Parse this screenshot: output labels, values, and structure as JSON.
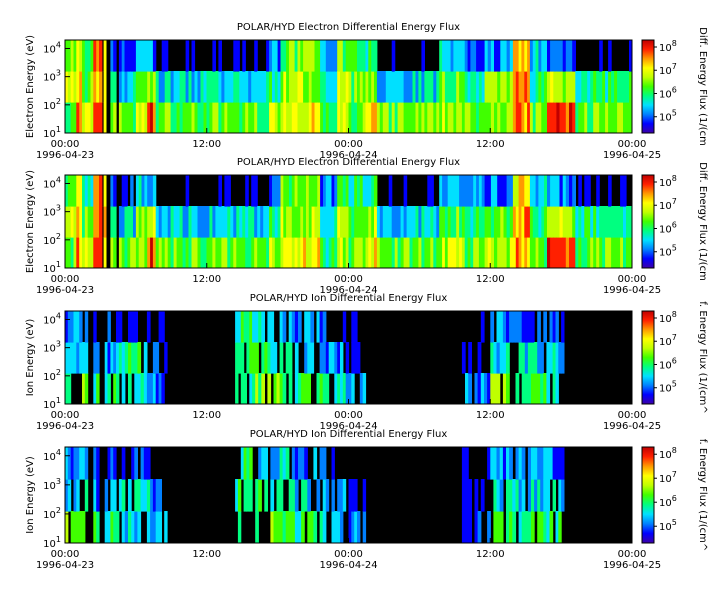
{
  "colors": {
    "background": "#000000",
    "colormap": [
      "#3d00a8",
      "#0000ff",
      "#0080ff",
      "#00e0ff",
      "#00ff80",
      "#40ff00",
      "#c0ff00",
      "#ffff00",
      "#ff9900",
      "#ff2000",
      "#c00000"
    ]
  },
  "chart_data": [
    {
      "type": "heatmap",
      "title": "POLAR/HYD  Electron Differential Energy Flux",
      "ylabel": "Electron Energy (eV)",
      "colorbar_label": "Diff. Energy Flux (1/(cm",
      "y_scale": "log",
      "ylim": [
        10,
        20000
      ],
      "y_ticks": [
        {
          "base": "10",
          "exp": "1"
        },
        {
          "base": "10",
          "exp": "2"
        },
        {
          "base": "10",
          "exp": "3"
        },
        {
          "base": "10",
          "exp": "4"
        }
      ],
      "colorbar_scale": "log",
      "colorbar_range": [
        20000,
        200000000
      ],
      "colorbar_ticks": [
        {
          "base": "10",
          "exp": "5"
        },
        {
          "base": "10",
          "exp": "6"
        },
        {
          "base": "10",
          "exp": "7"
        },
        {
          "base": "10",
          "exp": "8"
        }
      ],
      "x_ticks": [
        {
          "time": "00:00",
          "date": "1996-04-23"
        },
        {
          "time": "12:00",
          "date": ""
        },
        {
          "time": "00:00",
          "date": "1996-04-24"
        },
        {
          "time": "12:00",
          "date": ""
        },
        {
          "time": "00:00",
          "date": "1996-04-25"
        }
      ]
    },
    {
      "type": "heatmap",
      "title": "POLAR/HYD  Electron Differential Energy Flux",
      "ylabel": "Electron Energy (eV)",
      "colorbar_label": "Diff. Energy Flux (1/(cm",
      "y_scale": "log",
      "ylim": [
        10,
        20000
      ],
      "y_ticks": [
        {
          "base": "10",
          "exp": "1"
        },
        {
          "base": "10",
          "exp": "2"
        },
        {
          "base": "10",
          "exp": "3"
        },
        {
          "base": "10",
          "exp": "4"
        }
      ],
      "colorbar_scale": "log",
      "colorbar_range": [
        20000,
        200000000
      ],
      "colorbar_ticks": [
        {
          "base": "10",
          "exp": "5"
        },
        {
          "base": "10",
          "exp": "6"
        },
        {
          "base": "10",
          "exp": "7"
        },
        {
          "base": "10",
          "exp": "8"
        }
      ],
      "x_ticks": [
        {
          "time": "00:00",
          "date": "1996-04-23"
        },
        {
          "time": "12:00",
          "date": ""
        },
        {
          "time": "00:00",
          "date": "1996-04-24"
        },
        {
          "time": "12:00",
          "date": ""
        },
        {
          "time": "00:00",
          "date": "1996-04-25"
        }
      ]
    },
    {
      "type": "heatmap",
      "title": "POLAR/HYD  Ion Differential Energy Flux",
      "ylabel": "Ion Energy (eV)",
      "colorbar_label": "f. Energy Flux (1/(cm^",
      "y_scale": "log",
      "ylim": [
        10,
        20000
      ],
      "y_ticks": [
        {
          "base": "10",
          "exp": "1"
        },
        {
          "base": "10",
          "exp": "2"
        },
        {
          "base": "10",
          "exp": "3"
        },
        {
          "base": "10",
          "exp": "4"
        }
      ],
      "colorbar_scale": "log",
      "colorbar_range": [
        20000,
        200000000
      ],
      "colorbar_ticks": [
        {
          "base": "10",
          "exp": "5"
        },
        {
          "base": "10",
          "exp": "6"
        },
        {
          "base": "10",
          "exp": "7"
        },
        {
          "base": "10",
          "exp": "8"
        }
      ],
      "x_ticks": [
        {
          "time": "00:00",
          "date": "1996-04-23"
        },
        {
          "time": "12:00",
          "date": ""
        },
        {
          "time": "00:00",
          "date": "1996-04-24"
        },
        {
          "time": "12:00",
          "date": ""
        },
        {
          "time": "00:00",
          "date": "1996-04-25"
        }
      ]
    },
    {
      "type": "heatmap",
      "title": "POLAR/HYD  Ion Differential Energy Flux",
      "ylabel": "Ion Energy (eV)",
      "colorbar_label": "f. Energy Flux (1/(cm^",
      "y_scale": "log",
      "ylim": [
        10,
        20000
      ],
      "y_ticks": [
        {
          "base": "10",
          "exp": "1"
        },
        {
          "base": "10",
          "exp": "2"
        },
        {
          "base": "10",
          "exp": "3"
        },
        {
          "base": "10",
          "exp": "4"
        }
      ],
      "colorbar_scale": "log",
      "colorbar_range": [
        20000,
        200000000
      ],
      "colorbar_ticks": [
        {
          "base": "10",
          "exp": "5"
        },
        {
          "base": "10",
          "exp": "6"
        },
        {
          "base": "10",
          "exp": "7"
        },
        {
          "base": "10",
          "exp": "8"
        }
      ],
      "x_ticks": [
        {
          "time": "00:00",
          "date": "1996-04-23"
        },
        {
          "time": "12:00",
          "date": ""
        },
        {
          "time": "00:00",
          "date": "1996-04-24"
        },
        {
          "time": "12:00",
          "date": ""
        },
        {
          "time": "00:00",
          "date": "1996-04-25"
        }
      ]
    }
  ]
}
